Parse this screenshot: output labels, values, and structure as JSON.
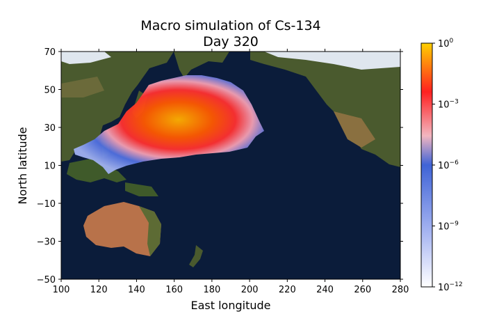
{
  "title": "Macro simulation of Cs-134",
  "subtitle": "Day 320",
  "xlabel": "East longitude",
  "ylabel": "North latitude",
  "x_ticks": [
    "100",
    "120",
    "140",
    "160",
    "180",
    "200",
    "220",
    "240",
    "260",
    "280"
  ],
  "y_ticks": [
    "70",
    "50",
    "30",
    "10",
    "−10",
    "−30",
    "−50"
  ],
  "x_range": [
    100,
    280
  ],
  "y_range": [
    -50,
    70
  ],
  "colorbar": {
    "scale": "log",
    "range": [
      1e-12,
      1
    ],
    "tick_base": "10",
    "tick_exponents": [
      "0",
      "−3",
      "−6",
      "−9",
      "−12"
    ],
    "colors": [
      "#ffffff",
      "#a8b6f2",
      "#3f63d6",
      "#f2b6c0",
      "#ff2020",
      "#ffd000"
    ]
  },
  "basemap": {
    "ocean_color": "#0b1c3a",
    "land_color": "#4a5a2e",
    "desert_color": "#b8724a",
    "ice_color": "#dfe6ee"
  }
}
